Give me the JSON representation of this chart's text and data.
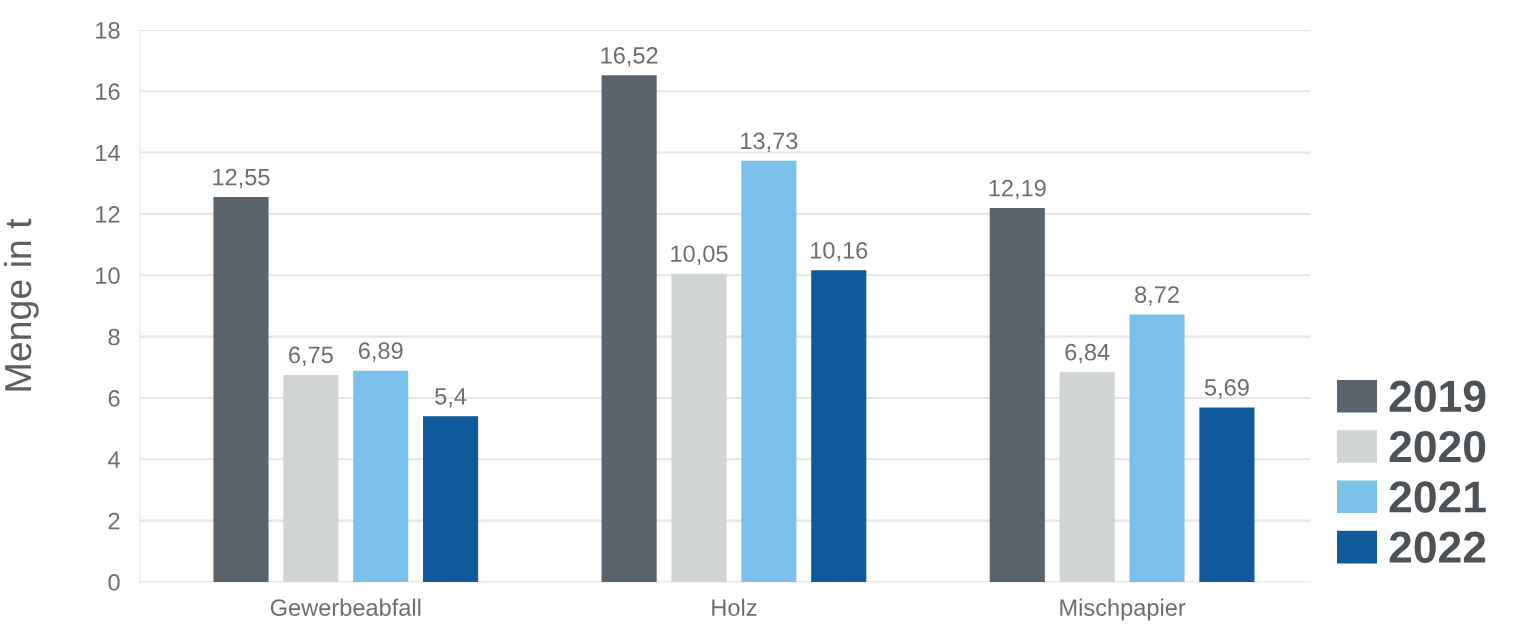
{
  "chart_data": {
    "type": "bar",
    "ylabel": "Menge in t",
    "categories": [
      "Gewerbeabfall",
      "Holz",
      "Mischpapier"
    ],
    "series": [
      {
        "name": "2019",
        "color": "#5b636b",
        "values": [
          12.55,
          16.52,
          12.19
        ],
        "value_labels": [
          "12,55",
          "16,52",
          "12,19"
        ]
      },
      {
        "name": "2020",
        "color": "#d0d4d4",
        "values": [
          6.75,
          10.05,
          6.84
        ],
        "value_labels": [
          "6,75",
          "10,05",
          "6,84"
        ]
      },
      {
        "name": "2021",
        "color": "#7cc1ea",
        "values": [
          6.89,
          13.73,
          8.72
        ],
        "value_labels": [
          "6,89",
          "13,73",
          "8,72"
        ]
      },
      {
        "name": "2022",
        "color": "#0f5a9a",
        "values": [
          5.4,
          10.16,
          5.69
        ],
        "value_labels": [
          "5,4",
          "10,16",
          "5,69"
        ]
      }
    ],
    "ylim": [
      0,
      18
    ],
    "yticks": [
      0,
      2,
      4,
      6,
      8,
      10,
      12,
      14,
      16,
      18
    ],
    "grid": "y",
    "legend": "bottom right"
  }
}
